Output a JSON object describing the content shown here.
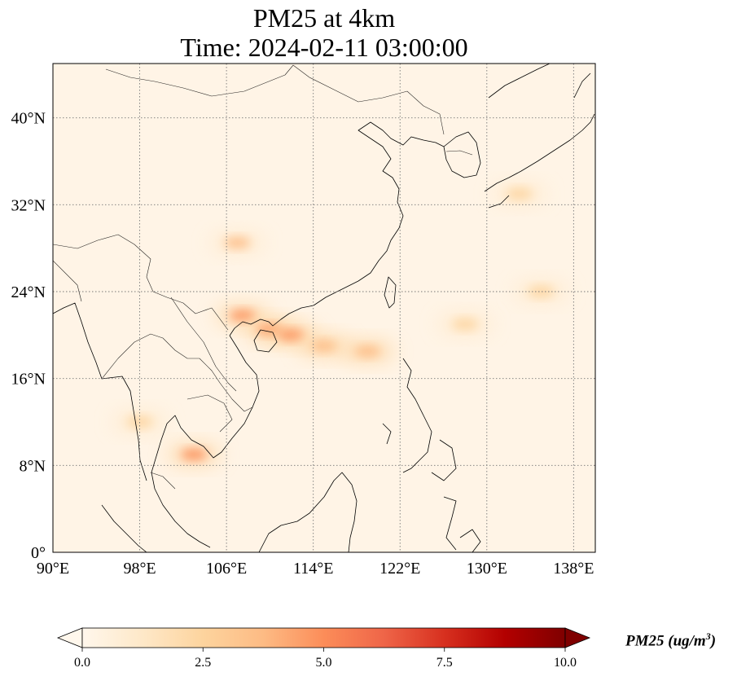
{
  "title": {
    "line1": "PM25 at 4km",
    "line2": "Time: 2024-02-11 03:00:00"
  },
  "map": {
    "region": "East and Southeast Asia",
    "projection": "PlateCarree",
    "lon_range": [
      90,
      140
    ],
    "lat_range": [
      0,
      45
    ],
    "gridlines": "dotted",
    "x_ticks": [
      "90°E",
      "98°E",
      "106°E",
      "114°E",
      "122°E",
      "130°E",
      "138°E"
    ],
    "x_tick_values": [
      90,
      98,
      106,
      114,
      122,
      130,
      138
    ],
    "y_ticks": [
      "0°",
      "8°N",
      "16°N",
      "24°N",
      "32°N",
      "40°N"
    ],
    "y_tick_values": [
      0,
      8,
      16,
      24,
      32,
      40
    ],
    "features": [
      "coastlines",
      "country-borders"
    ]
  },
  "colorbar": {
    "colormap": "OrRd",
    "min": 0.0,
    "max": 10.0,
    "extend": "both",
    "ticks": [
      "0.0",
      "2.5",
      "5.0",
      "7.5",
      "10.0"
    ],
    "tick_values": [
      0,
      2.5,
      5,
      7.5,
      10
    ],
    "label_main": "PM25 (ug/m",
    "label_sup": "3",
    "label_end": ")",
    "colors": [
      "#fff7ec",
      "#fee8c8",
      "#fdd49e",
      "#fdbb84",
      "#fc8d59",
      "#ef6548",
      "#d7301f",
      "#b30000",
      "#7f0000"
    ]
  },
  "chart_data": {
    "type": "heatmap",
    "variable": "PM25",
    "units": "ug/m3",
    "level": "4km",
    "time": "2024-02-11 03:00:00",
    "xlabel": "",
    "ylabel": "",
    "xlim": [
      90,
      140
    ],
    "ylim": [
      0,
      45
    ],
    "concentration_features": [
      {
        "lon": 107,
        "lat": 28.5,
        "value": 3.2
      },
      {
        "lon": 107.5,
        "lat": 21.8,
        "value": 5.5
      },
      {
        "lon": 110,
        "lat": 20.5,
        "value": 5.0
      },
      {
        "lon": 112,
        "lat": 20,
        "value": 4.5
      },
      {
        "lon": 115,
        "lat": 19,
        "value": 4.0
      },
      {
        "lon": 119,
        "lat": 18.5,
        "value": 4.2
      },
      {
        "lon": 128,
        "lat": 21,
        "value": 3.0
      },
      {
        "lon": 135,
        "lat": 24,
        "value": 2.5
      },
      {
        "lon": 103,
        "lat": 9,
        "value": 4.5
      },
      {
        "lon": 98,
        "lat": 12,
        "value": 2.0
      },
      {
        "lon": 133,
        "lat": 33,
        "value": 2.0
      }
    ]
  }
}
